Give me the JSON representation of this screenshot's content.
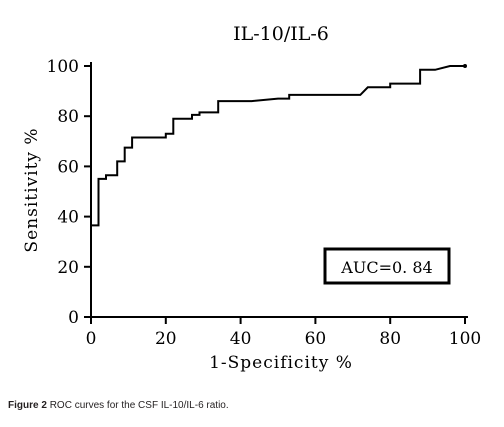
{
  "chart_data": {
    "type": "line",
    "title": "IL-10/IL-6",
    "xlabel": "1-Specificity %",
    "ylabel": "Sensitivity %",
    "xlim": [
      0,
      100
    ],
    "ylim": [
      0,
      100
    ],
    "xticks": [
      "0",
      "20",
      "40",
      "60",
      "80",
      "100"
    ],
    "yticks": [
      "0",
      "20",
      "40",
      "60",
      "80",
      "100"
    ],
    "annotation": "AUC=0. 84",
    "series": [
      {
        "points": [
          [
            0,
            0
          ],
          [
            0,
            36.5
          ],
          [
            2,
            36.5
          ],
          [
            2,
            55
          ],
          [
            4,
            55
          ],
          [
            4,
            56.5
          ],
          [
            7,
            56.5
          ],
          [
            7,
            62
          ],
          [
            9,
            62
          ],
          [
            9,
            67.5
          ],
          [
            11,
            67.5
          ],
          [
            11,
            71.5
          ],
          [
            20,
            71.5
          ],
          [
            20,
            73
          ],
          [
            22,
            73
          ],
          [
            22,
            79
          ],
          [
            27,
            79
          ],
          [
            27,
            80.5
          ],
          [
            29,
            80.5
          ],
          [
            29,
            81.5
          ],
          [
            34,
            81.5
          ],
          [
            34,
            86
          ],
          [
            43,
            86
          ],
          [
            50,
            87
          ],
          [
            53,
            87
          ],
          [
            53,
            88.5
          ],
          [
            72,
            88.5
          ],
          [
            74,
            91.5
          ],
          [
            80,
            91.5
          ],
          [
            80,
            93
          ],
          [
            88,
            93
          ],
          [
            88,
            98.5
          ],
          [
            92,
            98.5
          ],
          [
            96,
            100
          ],
          [
            100,
            100
          ]
        ]
      }
    ]
  },
  "caption": {
    "label": "Figure 2",
    "text": "ROC curves for the CSF IL-10/IL-6 ratio."
  }
}
